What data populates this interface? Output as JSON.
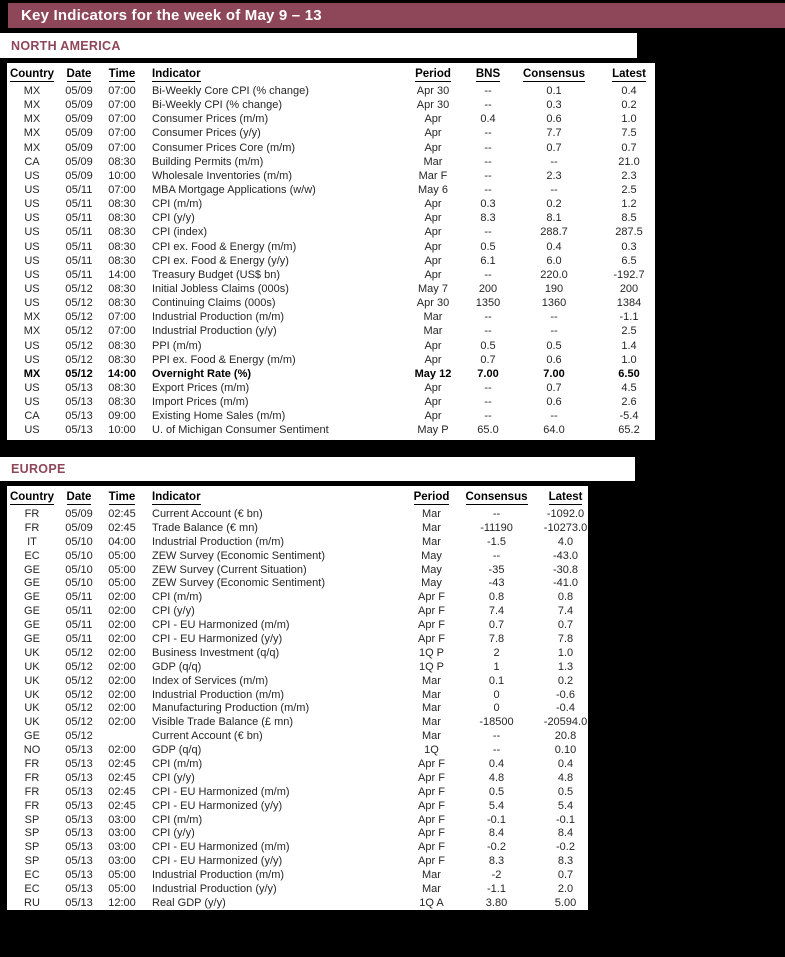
{
  "title": "Key Indicators for the week of May 9 – 13",
  "colors": {
    "accent": "#8E4659",
    "title_text": "#FFFFFF",
    "section_text": "#8E4659",
    "body_text": "#262626",
    "page_background": "#000000",
    "panel_background": "#FFFFFF"
  },
  "sections": [
    {
      "name": "NORTH AMERICA",
      "columns": [
        "Country",
        "Date",
        "Time",
        "Indicator",
        "Period",
        "BNS",
        "Consensus",
        "Latest"
      ],
      "bold_row_indices": [
        20
      ],
      "rows": [
        [
          "MX",
          "05/09",
          "07:00",
          "Bi-Weekly Core CPI (% change)",
          "Apr 30",
          "--",
          "0.1",
          "0.4"
        ],
        [
          "MX",
          "05/09",
          "07:00",
          "Bi-Weekly CPI (% change)",
          "Apr 30",
          "--",
          "0.3",
          "0.2"
        ],
        [
          "MX",
          "05/09",
          "07:00",
          "Consumer Prices (m/m)",
          "Apr",
          "0.4",
          "0.6",
          "1.0"
        ],
        [
          "MX",
          "05/09",
          "07:00",
          "Consumer Prices (y/y)",
          "Apr",
          "--",
          "7.7",
          "7.5"
        ],
        [
          "MX",
          "05/09",
          "07:00",
          "Consumer Prices Core (m/m)",
          "Apr",
          "--",
          "0.7",
          "0.7"
        ],
        [
          "CA",
          "05/09",
          "08:30",
          "Building Permits (m/m)",
          "Mar",
          "--",
          "--",
          "21.0"
        ],
        [
          "US",
          "05/09",
          "10:00",
          "Wholesale Inventories (m/m)",
          "Mar F",
          "--",
          "2.3",
          "2.3"
        ],
        [
          "US",
          "05/11",
          "07:00",
          "MBA Mortgage Applications (w/w)",
          "May 6",
          "--",
          "--",
          "2.5"
        ],
        [
          "US",
          "05/11",
          "08:30",
          "CPI (m/m)",
          "Apr",
          "0.3",
          "0.2",
          "1.2"
        ],
        [
          "US",
          "05/11",
          "08:30",
          "CPI (y/y)",
          "Apr",
          "8.3",
          "8.1",
          "8.5"
        ],
        [
          "US",
          "05/11",
          "08:30",
          "CPI (index)",
          "Apr",
          "--",
          "288.7",
          "287.5"
        ],
        [
          "US",
          "05/11",
          "08:30",
          "CPI ex. Food & Energy (m/m)",
          "Apr",
          "0.5",
          "0.4",
          "0.3"
        ],
        [
          "US",
          "05/11",
          "08:30",
          "CPI ex. Food & Energy (y/y)",
          "Apr",
          "6.1",
          "6.0",
          "6.5"
        ],
        [
          "US",
          "05/11",
          "14:00",
          "Treasury Budget (US$ bn)",
          "Apr",
          "--",
          "220.0",
          "-192.7"
        ],
        [
          "US",
          "05/12",
          "08:30",
          "Initial Jobless Claims (000s)",
          "May 7",
          "200",
          "190",
          "200"
        ],
        [
          "US",
          "05/12",
          "08:30",
          "Continuing Claims (000s)",
          "Apr 30",
          "1350",
          "1360",
          "1384"
        ],
        [
          "MX",
          "05/12",
          "07:00",
          "Industrial Production (m/m)",
          "Mar",
          "--",
          "--",
          "-1.1"
        ],
        [
          "MX",
          "05/12",
          "07:00",
          "Industrial Production (y/y)",
          "Mar",
          "--",
          "--",
          "2.5"
        ],
        [
          "US",
          "05/12",
          "08:30",
          "PPI (m/m)",
          "Apr",
          "0.5",
          "0.5",
          "1.4"
        ],
        [
          "US",
          "05/12",
          "08:30",
          "PPI ex. Food & Energy (m/m)",
          "Apr",
          "0.7",
          "0.6",
          "1.0"
        ],
        [
          "MX",
          "05/12",
          "14:00",
          "Overnight Rate (%)",
          "May 12",
          "7.00",
          "7.00",
          "6.50"
        ],
        [
          "US",
          "05/13",
          "08:30",
          "Export Prices (m/m)",
          "Apr",
          "--",
          "0.7",
          "4.5"
        ],
        [
          "US",
          "05/13",
          "08:30",
          "Import Prices (m/m)",
          "Apr",
          "--",
          "0.6",
          "2.6"
        ],
        [
          "CA",
          "05/13",
          "09:00",
          "Existing Home Sales (m/m)",
          "Apr",
          "--",
          "--",
          "-5.4"
        ],
        [
          "US",
          "05/13",
          "10:00",
          "U. of Michigan Consumer Sentiment",
          "May P",
          "65.0",
          "64.0",
          "65.2"
        ]
      ]
    },
    {
      "name": "EUROPE",
      "columns": [
        "Country",
        "Date",
        "Time",
        "Indicator",
        "Period",
        "Consensus",
        "Latest"
      ],
      "bold_row_indices": [],
      "rows": [
        [
          "FR",
          "05/09",
          "02:45",
          "Current Account (€ bn)",
          "Mar",
          "--",
          "-1092.0"
        ],
        [
          "FR",
          "05/09",
          "02:45",
          "Trade Balance (€ mn)",
          "Mar",
          "-11190",
          "-10273.0"
        ],
        [
          "IT",
          "05/10",
          "04:00",
          "Industrial Production (m/m)",
          "Mar",
          "-1.5",
          "4.0"
        ],
        [
          "EC",
          "05/10",
          "05:00",
          "ZEW Survey (Economic Sentiment)",
          "May",
          "--",
          "-43.0"
        ],
        [
          "GE",
          "05/10",
          "05:00",
          "ZEW Survey (Current Situation)",
          "May",
          "-35",
          "-30.8"
        ],
        [
          "GE",
          "05/10",
          "05:00",
          "ZEW Survey (Economic Sentiment)",
          "May",
          "-43",
          "-41.0"
        ],
        [
          "GE",
          "05/11",
          "02:00",
          "CPI (m/m)",
          "Apr F",
          "0.8",
          "0.8"
        ],
        [
          "GE",
          "05/11",
          "02:00",
          "CPI (y/y)",
          "Apr F",
          "7.4",
          "7.4"
        ],
        [
          "GE",
          "05/11",
          "02:00",
          "CPI - EU Harmonized (m/m)",
          "Apr F",
          "0.7",
          "0.7"
        ],
        [
          "GE",
          "05/11",
          "02:00",
          "CPI - EU Harmonized (y/y)",
          "Apr F",
          "7.8",
          "7.8"
        ],
        [
          "UK",
          "05/12",
          "02:00",
          "Business Investment (q/q)",
          "1Q P",
          "2",
          "1.0"
        ],
        [
          "UK",
          "05/12",
          "02:00",
          "GDP (q/q)",
          "1Q P",
          "1",
          "1.3"
        ],
        [
          "UK",
          "05/12",
          "02:00",
          "Index of Services (m/m)",
          "Mar",
          "0.1",
          "0.2"
        ],
        [
          "UK",
          "05/12",
          "02:00",
          "Industrial Production (m/m)",
          "Mar",
          "0",
          "-0.6"
        ],
        [
          "UK",
          "05/12",
          "02:00",
          "Manufacturing Production (m/m)",
          "Mar",
          "0",
          "-0.4"
        ],
        [
          "UK",
          "05/12",
          "02:00",
          "Visible Trade Balance (£ mn)",
          "Mar",
          "-18500",
          "-20594.0"
        ],
        [
          "GE",
          "05/12",
          "",
          "Current Account (€ bn)",
          "Mar",
          "--",
          "20.8"
        ],
        [
          "NO",
          "05/13",
          "02:00",
          "GDP (q/q)",
          "1Q",
          "--",
          "0.10"
        ],
        [
          "FR",
          "05/13",
          "02:45",
          "CPI (m/m)",
          "Apr F",
          "0.4",
          "0.4"
        ],
        [
          "FR",
          "05/13",
          "02:45",
          "CPI (y/y)",
          "Apr F",
          "4.8",
          "4.8"
        ],
        [
          "FR",
          "05/13",
          "02:45",
          "CPI - EU Harmonized (m/m)",
          "Apr F",
          "0.5",
          "0.5"
        ],
        [
          "FR",
          "05/13",
          "02:45",
          "CPI - EU Harmonized (y/y)",
          "Apr F",
          "5.4",
          "5.4"
        ],
        [
          "SP",
          "05/13",
          "03:00",
          "CPI (m/m)",
          "Apr F",
          "-0.1",
          "-0.1"
        ],
        [
          "SP",
          "05/13",
          "03:00",
          "CPI (y/y)",
          "Apr F",
          "8.4",
          "8.4"
        ],
        [
          "SP",
          "05/13",
          "03:00",
          "CPI - EU Harmonized (m/m)",
          "Apr F",
          "-0.2",
          "-0.2"
        ],
        [
          "SP",
          "05/13",
          "03:00",
          "CPI - EU Harmonized (y/y)",
          "Apr F",
          "8.3",
          "8.3"
        ],
        [
          "EC",
          "05/13",
          "05:00",
          "Industrial Production (m/m)",
          "Mar",
          "-2",
          "0.7"
        ],
        [
          "EC",
          "05/13",
          "05:00",
          "Industrial Production (y/y)",
          "Mar",
          "-1.1",
          "2.0"
        ],
        [
          "RU",
          "05/13",
          "12:00",
          "Real GDP (y/y)",
          "1Q A",
          "3.80",
          "5.00"
        ]
      ]
    }
  ]
}
